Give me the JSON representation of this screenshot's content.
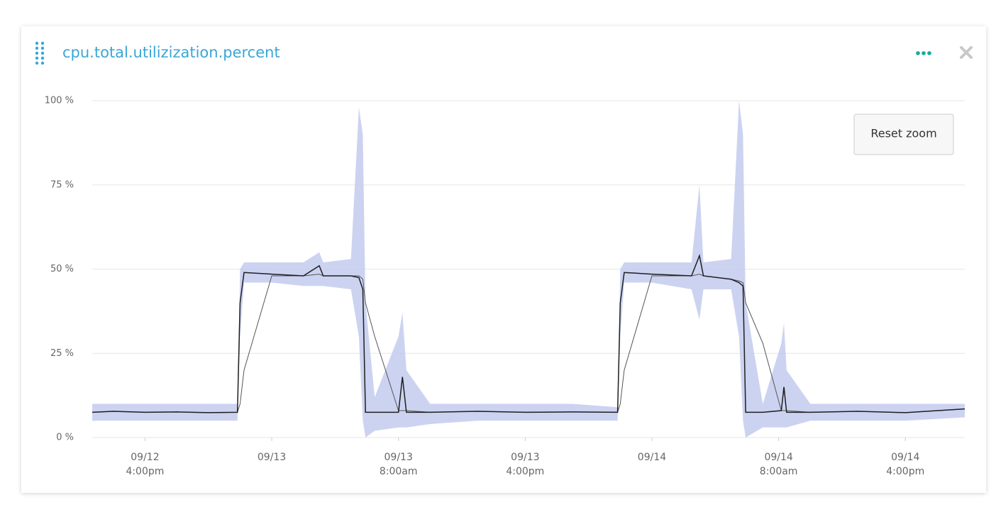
{
  "chart_data": {
    "type": "line",
    "title": "cpu.total.utilizization.percent",
    "reset_zoom": "Reset zoom",
    "ylim": [
      0,
      100
    ],
    "yticks": [
      {
        "value": 0,
        "label": "0 %"
      },
      {
        "value": 25,
        "label": "25 %"
      },
      {
        "value": 50,
        "label": "50 %"
      },
      {
        "value": 75,
        "label": "75 %"
      },
      {
        "value": 100,
        "label": "100 %"
      }
    ],
    "xlim": [
      "09/12 12:40",
      "09/14 19:45"
    ],
    "xticks": [
      {
        "value": "09/12 16:00",
        "label": [
          "09/12",
          "4:00pm"
        ]
      },
      {
        "value": "09/13 00:00",
        "label": [
          "09/13"
        ]
      },
      {
        "value": "09/13 08:00",
        "label": [
          "09/13",
          "8:00am"
        ]
      },
      {
        "value": "09/13 16:00",
        "label": [
          "09/13",
          "4:00pm"
        ]
      },
      {
        "value": "09/14 00:00",
        "label": [
          "09/14"
        ]
      },
      {
        "value": "09/14 08:00",
        "label": [
          "09/14",
          "8:00am"
        ]
      },
      {
        "value": "09/14 16:00",
        "label": [
          "09/14",
          "4:00pm"
        ]
      }
    ],
    "grid": true,
    "x": [
      "09/12 12:40",
      "09/12 14:00",
      "09/12 16:00",
      "09/12 18:00",
      "09/12 20:00",
      "09/12 21:50",
      "09/12 22:00",
      "09/12 22:15",
      "09/13 00:00",
      "09/13 02:00",
      "09/13 03:00",
      "09/13 03:15",
      "09/13 05:00",
      "09/13 05:30",
      "09/13 05:45",
      "09/13 05:55",
      "09/13 06:30",
      "09/13 08:00",
      "09/13 08:15",
      "09/13 08:30",
      "09/13 10:00",
      "09/13 13:00",
      "09/13 16:00",
      "09/13 19:00",
      "09/13 21:50",
      "09/13 22:00",
      "09/13 22:15",
      "09/14 00:00",
      "09/14 02:30",
      "09/14 03:00",
      "09/14 03:15",
      "09/14 05:00",
      "09/14 05:30",
      "09/14 05:45",
      "09/14 05:55",
      "09/14 07:00",
      "09/14 08:10",
      "09/14 08:20",
      "09/14 08:30",
      "09/14 10:00",
      "09/14 13:00",
      "09/14 16:00",
      "09/14 19:45"
    ],
    "band": {
      "color": "#c3cbee",
      "lower": [
        5,
        5,
        5,
        5,
        5,
        5,
        30,
        46,
        46,
        45,
        45,
        45,
        44,
        30,
        5,
        0,
        2,
        3,
        3,
        3,
        4,
        5,
        5,
        5,
        5,
        30,
        46,
        46,
        44,
        35,
        44,
        44,
        30,
        5,
        0,
        3,
        3,
        3,
        3,
        5,
        5,
        5,
        6
      ],
      "upper": [
        10,
        10,
        10,
        10,
        10,
        10,
        50,
        52,
        52,
        52,
        55,
        52,
        53,
        98,
        90,
        40,
        12,
        30,
        37,
        20,
        10,
        10,
        10,
        10,
        9,
        50,
        52,
        52,
        52,
        75,
        52,
        53,
        100,
        90,
        40,
        10,
        28,
        34,
        20,
        10,
        10,
        10,
        10
      ]
    },
    "series": [
      {
        "color": "#555555",
        "values": [
          7.5,
          7.8,
          7.5,
          7.6,
          7.4,
          7.5,
          10,
          20,
          48,
          48,
          48.5,
          48,
          48,
          48,
          47,
          40,
          30,
          8,
          8,
          8,
          7.5,
          7.8,
          7.5,
          7.6,
          7.5,
          10,
          20,
          48,
          48,
          48.5,
          48,
          47,
          46.5,
          46,
          40,
          28,
          8,
          8,
          8,
          7.5,
          7.8,
          7.4,
          8.5
        ]
      },
      {
        "color": "#1f1f1f",
        "values": [
          7.5,
          7.8,
          7.5,
          7.6,
          7.4,
          7.5,
          40,
          49,
          48.5,
          48,
          51,
          48,
          48,
          47.5,
          44,
          7.5,
          7.5,
          7.5,
          18,
          7.5,
          7.5,
          7.8,
          7.5,
          7.6,
          7.5,
          40,
          49,
          48.5,
          48,
          54,
          48,
          47,
          46,
          45,
          7.5,
          7.5,
          8,
          15,
          7.5,
          7.5,
          7.8,
          7.4,
          8.5
        ]
      }
    ]
  }
}
